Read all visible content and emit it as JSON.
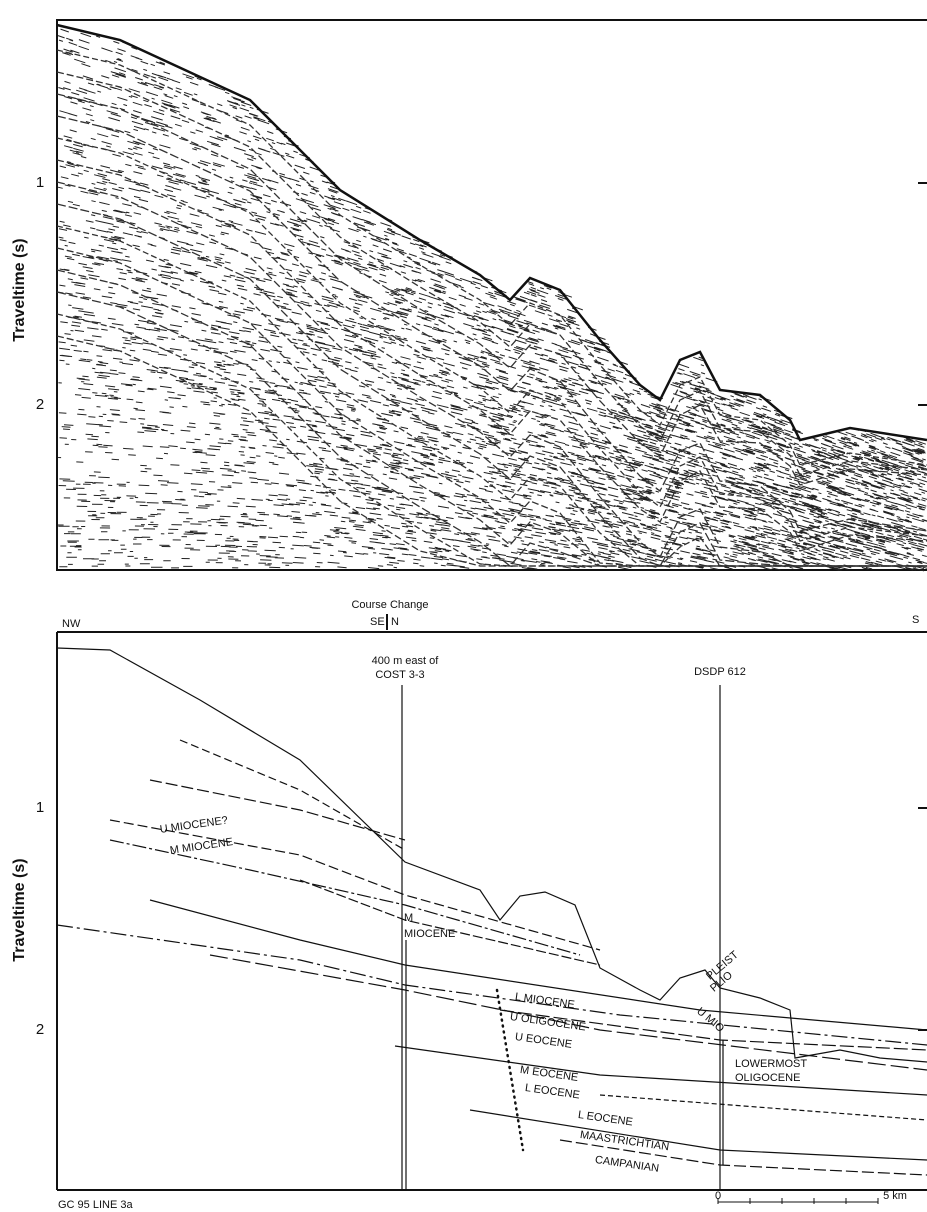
{
  "top_panel": {
    "y_axis_label": "Traveltime (s)",
    "y_ticks": [
      1,
      2
    ]
  },
  "bottom_panel": {
    "y_axis_label": "Traveltime (s)",
    "y_ticks": [
      1,
      2
    ],
    "course_change": "Course Change",
    "se": "SE",
    "n": "N",
    "nw": "NW",
    "s": "S",
    "well_1_line1": "400 m  east of",
    "well_1_line2": "COST 3-3",
    "well_2": "DSDP 612",
    "labels": [
      "U MIOCENE?",
      "M MIOCENE",
      "M",
      "MIOCENE",
      "L MIOCENE",
      "U OLIGOCENE",
      "U EOCENE",
      "M EOCENE",
      "L EOCENE",
      "L EOCENE",
      "MAASTRICHTIAN",
      "CAMPANIAN",
      "PLEIST",
      "PLIO",
      "U MIO",
      "LOWERMOST",
      "OLIGOCENE"
    ],
    "line_name": "GC 95 LINE 3a",
    "scale_start": "0",
    "scale_end": "5 km"
  }
}
